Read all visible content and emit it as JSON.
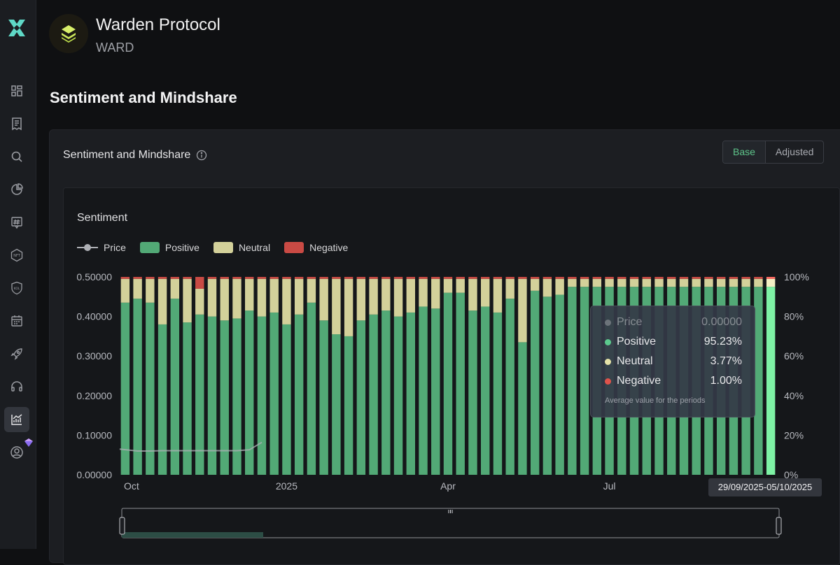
{
  "token": {
    "name": "Warden Protocol",
    "symbol": "WARD"
  },
  "page": {
    "section_title": "Sentiment and Mindshare"
  },
  "card": {
    "title": "Sentiment and Mindshare",
    "toggle": {
      "base": "Base",
      "adjusted": "Adjusted",
      "selected": "Base"
    }
  },
  "chart_title": "Sentiment",
  "legend": {
    "price": "Price",
    "positive": "Positive",
    "neutral": "Neutral",
    "negative": "Negative"
  },
  "colors": {
    "positive": "#52a976",
    "neutral": "#d3d19a",
    "negative": "#c94a44",
    "price": "#aeb0b5",
    "highlight": "#7ef2a5",
    "accent": "#5ec48a"
  },
  "tooltip": {
    "price_label": "Price",
    "price_value": "0.00000",
    "positive_label": "Positive",
    "positive_value": "95.23%",
    "neutral_label": "Neutral",
    "neutral_value": "3.77%",
    "negative_label": "Negative",
    "negative_value": "1.00%",
    "note": "Average value for the periods"
  },
  "range_label": "29/09/2025-05/10/2025",
  "chart_data": {
    "type": "bar",
    "stacked": true,
    "left_axis": {
      "ticks": [
        "0.00000",
        "0.10000",
        "0.20000",
        "0.30000",
        "0.40000",
        "0.50000"
      ],
      "ylim": [
        0,
        0.5
      ]
    },
    "right_axis": {
      "ticks": [
        "0%",
        "20%",
        "40%",
        "60%",
        "80%",
        "100%"
      ],
      "ylim": [
        0,
        100
      ]
    },
    "x_ticks": [
      {
        "label": "Oct",
        "index": 0
      },
      {
        "label": "2025",
        "index": 13
      },
      {
        "label": "Apr",
        "index": 26
      },
      {
        "label": "Jul",
        "index": 39
      }
    ],
    "series": [
      {
        "name": "Positive",
        "values": [
          87,
          89,
          87,
          76,
          89,
          77,
          81,
          80,
          78,
          79,
          83,
          80,
          82,
          76,
          81,
          87,
          78,
          71,
          70,
          78,
          81,
          83,
          80,
          82,
          85,
          84,
          92,
          92,
          83,
          85,
          82,
          89,
          67,
          93,
          90,
          91,
          95,
          95,
          95,
          95,
          95,
          95,
          95,
          95,
          95,
          95,
          95,
          95,
          95,
          95,
          95,
          95,
          95
        ]
      },
      {
        "name": "Neutral",
        "values": [
          12,
          10,
          12,
          23,
          10,
          22,
          13,
          19,
          21,
          20,
          16,
          19,
          17,
          23,
          18,
          12,
          21,
          28,
          29,
          21,
          18,
          16,
          19,
          17,
          14,
          15,
          7,
          7,
          16,
          14,
          17,
          10,
          32,
          6,
          9,
          8,
          4,
          4,
          4,
          4,
          4,
          4,
          4,
          4,
          4,
          4,
          4,
          4,
          4,
          4,
          4,
          4,
          4
        ]
      },
      {
        "name": "Negative",
        "values": [
          1,
          1,
          1,
          1,
          1,
          1,
          6,
          1,
          1,
          1,
          1,
          1,
          1,
          1,
          1,
          1,
          1,
          1,
          1,
          1,
          1,
          1,
          1,
          1,
          1,
          1,
          1,
          1,
          1,
          1,
          1,
          1,
          1,
          1,
          1,
          1,
          1,
          1,
          1,
          1,
          1,
          1,
          1,
          1,
          1,
          1,
          1,
          1,
          1,
          1,
          1,
          1,
          1
        ]
      },
      {
        "name": "Price",
        "values": [
          0.065,
          0.06,
          0.06,
          0.061,
          0.061,
          0.061,
          0.061,
          0.061,
          0.061,
          0.061,
          0.063,
          0.082,
          null,
          null,
          null,
          null,
          null,
          null,
          null,
          null,
          null,
          null,
          null,
          null,
          null,
          null,
          null,
          null,
          null,
          null,
          null,
          null,
          null,
          null,
          null,
          null,
          null,
          null,
          null,
          null,
          null,
          null,
          null,
          null,
          null,
          null,
          null,
          null,
          null,
          null,
          null,
          null,
          null
        ]
      }
    ],
    "highlighted_index": 52
  }
}
